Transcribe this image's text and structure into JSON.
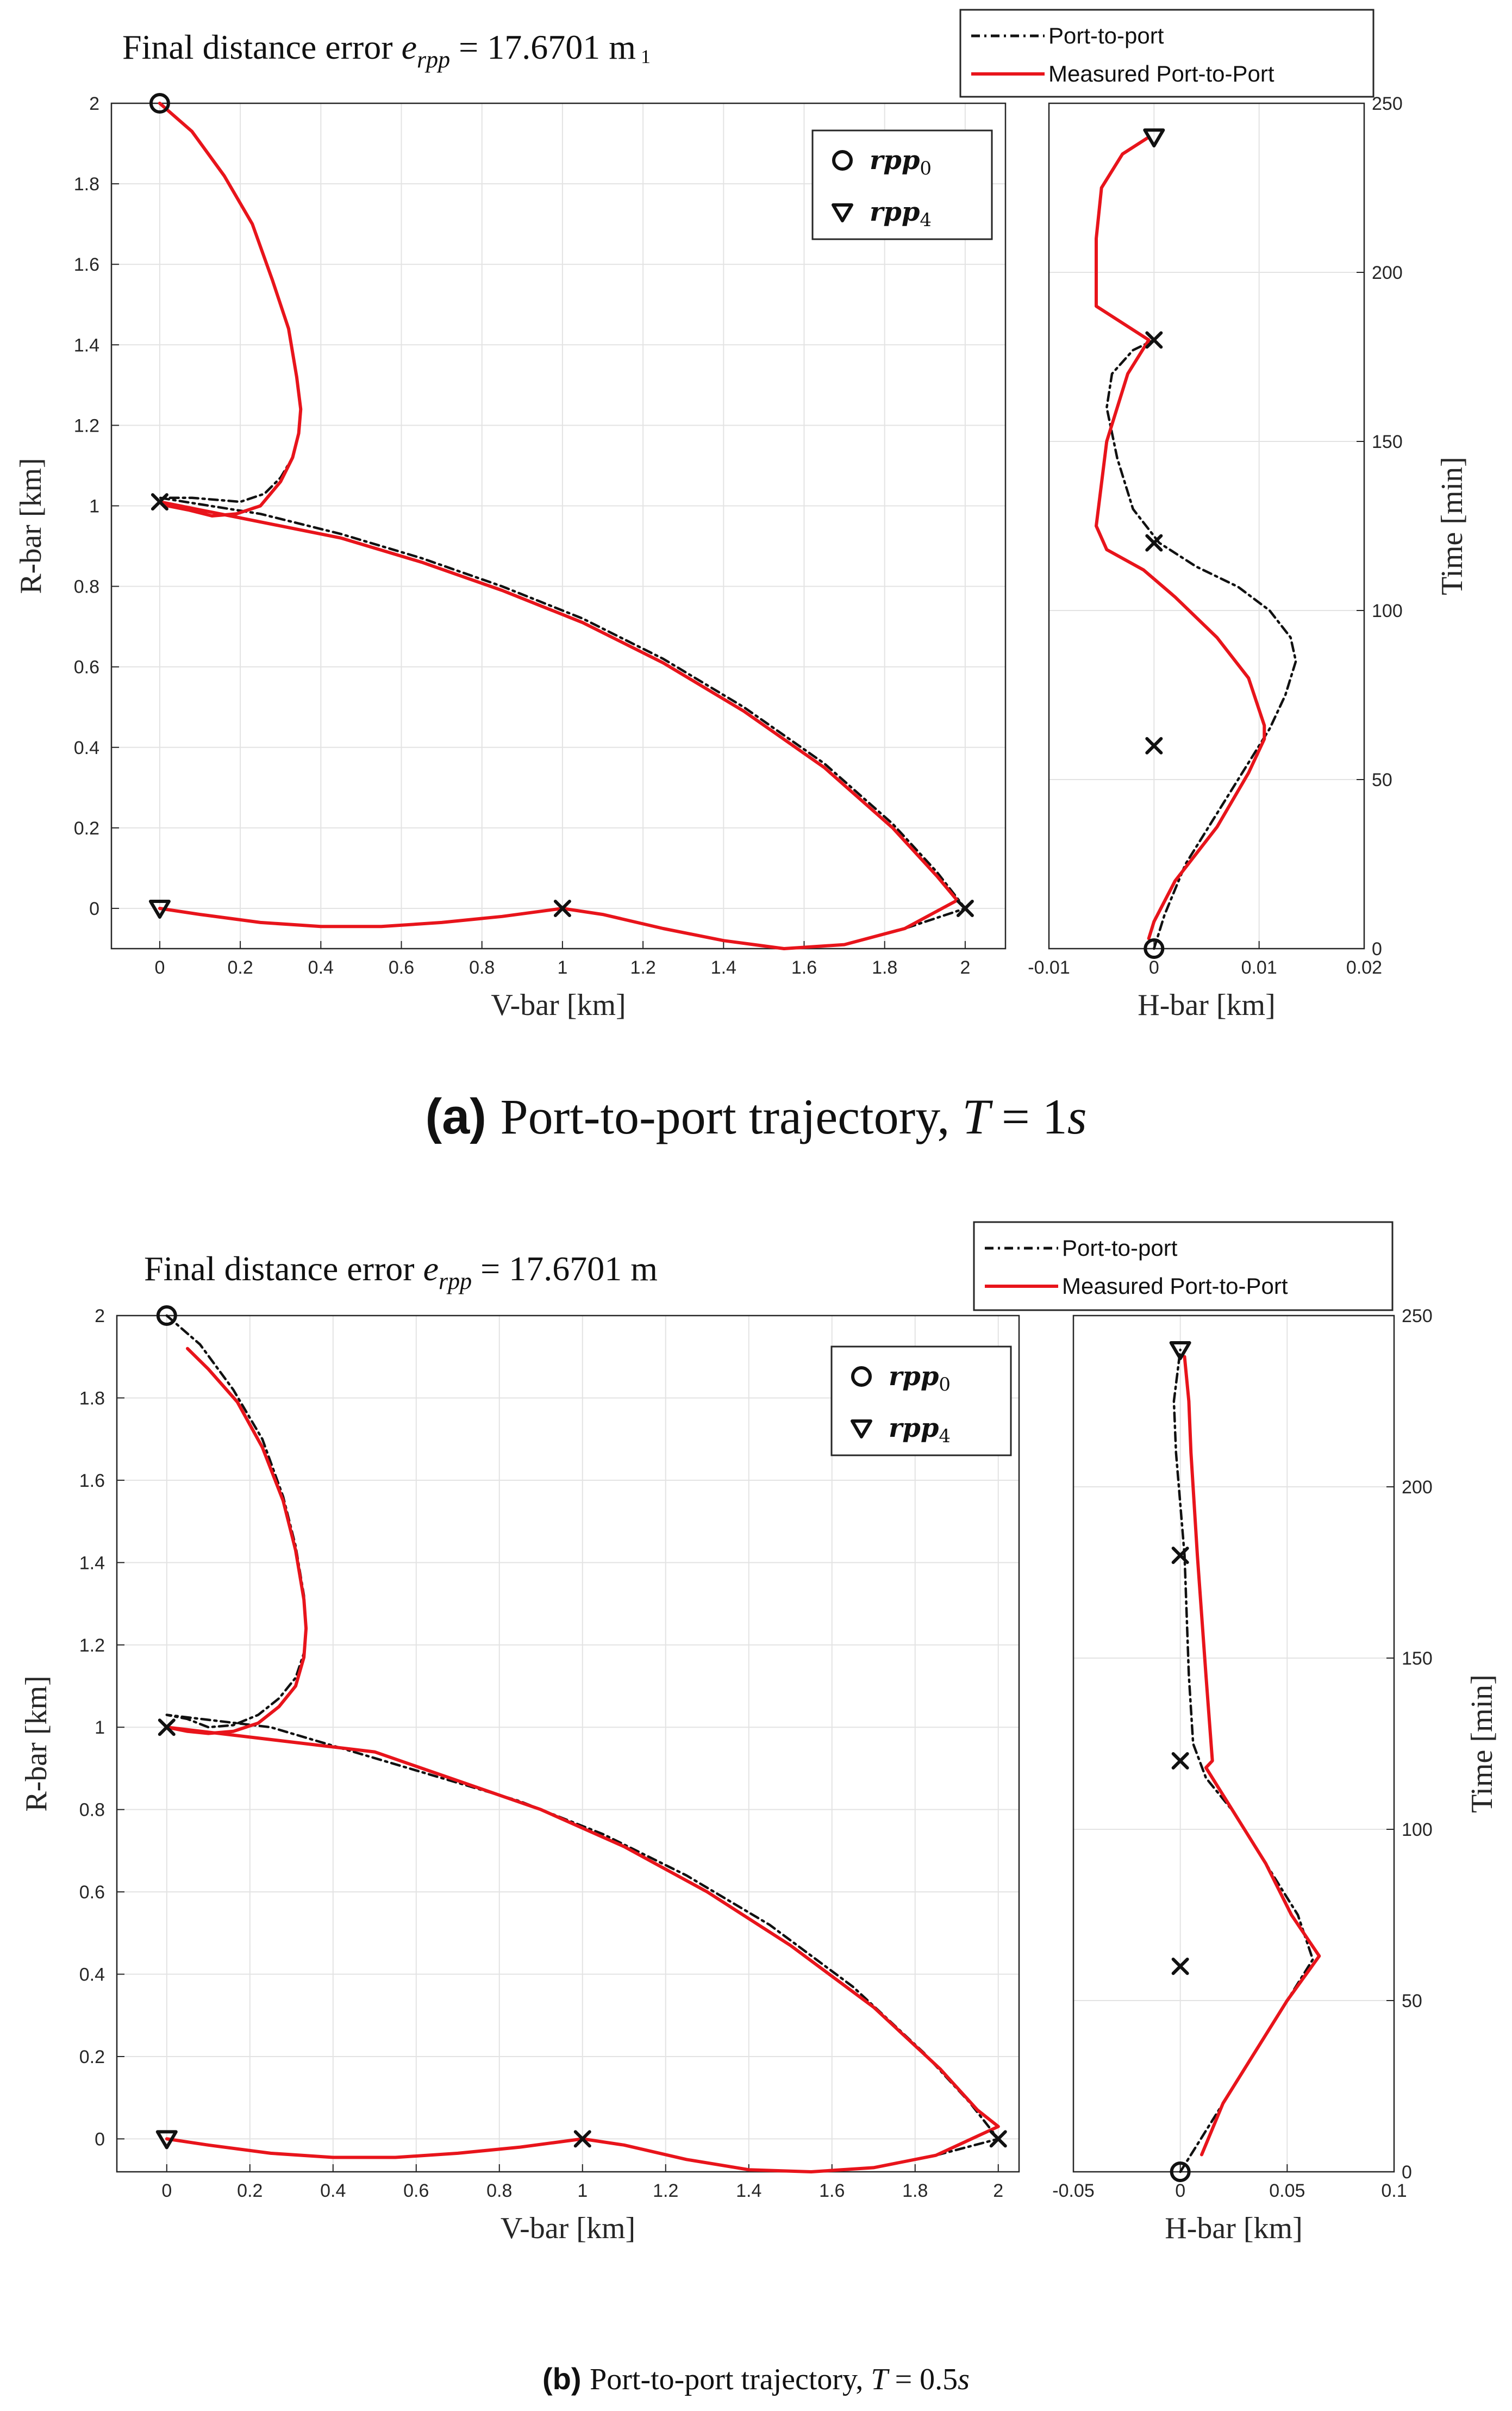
{
  "chart_data": [
    {
      "panel": "a",
      "type": "line",
      "title": "Final distance error e_rpp = 17.6701 m",
      "title_prefix": "Final distance error",
      "title_var": "e",
      "title_var_sub": "rpp",
      "title_value": "= 17.6701 m",
      "title_stray_mark": "1",
      "caption_label": "(a)",
      "caption_text": "Port-to-port trajectory,",
      "caption_var": "T",
      "caption_eq": "= 1",
      "caption_unit": "s",
      "legend": {
        "series": [
          "Port-to-port",
          "Measured Port-to-Port"
        ]
      },
      "marker_legend": {
        "entries": [
          {
            "marker": "circle",
            "label": "rpp",
            "sub": "0"
          },
          {
            "marker": "triangle",
            "label": "rpp",
            "sub": "4"
          }
        ]
      },
      "main": {
        "xlabel": "V-bar [km]",
        "ylabel": "R-bar [km]",
        "xlim": [
          -0.12,
          2.1
        ],
        "ylim": [
          -0.1,
          2.0
        ],
        "xticks": [
          "0",
          "0.2",
          "0.4",
          "0.6",
          "0.8",
          "1",
          "1.2",
          "1.4",
          "1.6",
          "1.8",
          "2"
        ],
        "yticks": [
          "0",
          "0.2",
          "0.4",
          "0.6",
          "0.8",
          "1",
          "1.2",
          "1.4",
          "1.6",
          "1.8",
          "2"
        ],
        "series": [
          {
            "name": "Port-to-port",
            "style": "dashdot",
            "color": "#111111",
            "x": [
              0.0,
              0.08,
              0.16,
              0.23,
              0.28,
              0.32,
              0.34,
              0.35,
              0.345,
              0.33,
              0.3,
              0.26,
              0.2,
              0.14,
              0.08,
              0.02,
              0.0,
              0.25,
              0.45,
              0.65,
              0.85,
              1.05,
              1.25,
              1.45,
              1.65,
              1.82,
              1.93,
              2.0,
              1.85,
              1.7,
              1.55,
              1.4,
              1.25,
              1.1,
              1.0,
              0.85,
              0.7,
              0.55,
              0.4,
              0.25,
              0.1,
              0.0
            ],
            "y": [
              2.0,
              1.93,
              1.82,
              1.7,
              1.56,
              1.44,
              1.32,
              1.24,
              1.18,
              1.12,
              1.07,
              1.03,
              1.01,
              1.015,
              1.02,
              1.02,
              1.02,
              0.98,
              0.93,
              0.87,
              0.8,
              0.72,
              0.62,
              0.5,
              0.36,
              0.21,
              0.09,
              0.0,
              -0.05,
              -0.09,
              -0.1,
              -0.08,
              -0.05,
              -0.015,
              0.0,
              -0.02,
              -0.035,
              -0.045,
              -0.045,
              -0.035,
              -0.015,
              0.0
            ]
          },
          {
            "name": "Measured Port-to-Port",
            "style": "solid",
            "color": "#e8141b",
            "x": [
              0.0,
              0.08,
              0.16,
              0.23,
              0.28,
              0.32,
              0.34,
              0.35,
              0.345,
              0.33,
              0.3,
              0.25,
              0.19,
              0.13,
              0.07,
              0.02,
              0.0,
              0.45,
              0.65,
              0.85,
              1.05,
              1.25,
              1.45,
              1.65,
              1.82,
              1.93,
              1.98,
              1.85,
              1.7,
              1.55,
              1.4,
              1.25,
              1.1,
              1.0,
              0.85,
              0.7,
              0.55,
              0.4,
              0.25,
              0.1,
              0.0
            ],
            "y": [
              2.0,
              1.93,
              1.82,
              1.7,
              1.56,
              1.44,
              1.32,
              1.24,
              1.18,
              1.12,
              1.06,
              1.0,
              0.98,
              0.975,
              0.99,
              1.0,
              1.01,
              0.92,
              0.86,
              0.79,
              0.71,
              0.61,
              0.49,
              0.35,
              0.2,
              0.08,
              0.02,
              -0.05,
              -0.09,
              -0.1,
              -0.08,
              -0.05,
              -0.015,
              0.0,
              -0.02,
              -0.035,
              -0.045,
              -0.045,
              -0.035,
              -0.015,
              0.0
            ]
          }
        ],
        "markers": [
          {
            "type": "circle",
            "x": 0.0,
            "y": 2.0
          },
          {
            "type": "triangle",
            "x": 0.0,
            "y": 0.0
          },
          {
            "type": "x",
            "x": 0.0,
            "y": 1.01
          },
          {
            "type": "x",
            "x": 1.0,
            "y": 0.0
          },
          {
            "type": "x",
            "x": 2.0,
            "y": 0.0
          }
        ]
      },
      "side": {
        "xlabel": "H-bar [km]",
        "ylabel": "Time [min]",
        "xlim": [
          -0.01,
          0.02
        ],
        "ylim": [
          0,
          250
        ],
        "xticks": [
          "-0.01",
          "0",
          "0.01",
          "0.02"
        ],
        "yticks": [
          "0",
          "50",
          "100",
          "150",
          "200",
          "250"
        ],
        "series": [
          {
            "name": "Port-to-port",
            "style": "dashdot",
            "color": "#111111",
            "x": [
              0.0,
              0.001,
              0.003,
              0.006,
              0.009,
              0.011,
              0.0125,
              0.0135,
              0.013,
              0.011,
              0.008,
              0.004,
              0.0005,
              -0.002,
              -0.0035,
              -0.0045,
              -0.004,
              -0.002,
              0.0
            ],
            "y": [
              0,
              10,
              25,
              40,
              55,
              65,
              75,
              85,
              92,
              100,
              107,
              113,
              120,
              130,
              145,
              160,
              170,
              177,
              180
            ]
          },
          {
            "name": "Measured Port-to-Port",
            "style": "solid",
            "color": "#e8141b",
            "x": [
              -0.0005,
              0.0,
              0.002,
              0.006,
              0.009,
              0.0105,
              0.0105,
              0.009,
              0.006,
              0.002,
              -0.001,
              -0.0045,
              -0.0055,
              -0.0045,
              -0.0025,
              -0.0005,
              -0.0055,
              -0.0055,
              -0.005,
              -0.003,
              -0.0005
            ],
            "y": [
              3,
              8,
              20,
              36,
              52,
              62,
              66,
              80,
              92,
              104,
              112,
              118,
              125,
              150,
              170,
              180,
              190,
              210,
              225,
              235,
              240
            ]
          }
        ],
        "markers": [
          {
            "type": "circle",
            "x": 0.0,
            "y": 0
          },
          {
            "type": "triangle",
            "x": 0.0,
            "y": 240
          },
          {
            "type": "x",
            "x": 0.0,
            "y": 60
          },
          {
            "type": "x",
            "x": 0.0,
            "y": 120
          },
          {
            "type": "x",
            "x": 0.0,
            "y": 180
          }
        ]
      }
    },
    {
      "panel": "b",
      "type": "line",
      "title": "Final distance error e_rpp = 17.6701 m",
      "title_prefix": "Final distance error",
      "title_var": "e",
      "title_var_sub": "rpp",
      "title_value": "= 17.6701 m",
      "title_stray_mark": "",
      "caption_label": "(b)",
      "caption_text": "Port-to-port trajectory,",
      "caption_var": "T",
      "caption_eq": "= 0.5",
      "caption_unit": "s",
      "legend": {
        "series": [
          "Port-to-port",
          "Measured Port-to-Port"
        ]
      },
      "marker_legend": {
        "entries": [
          {
            "marker": "circle",
            "label": "rpp",
            "sub": "0"
          },
          {
            "marker": "triangle",
            "label": "rpp",
            "sub": "4"
          }
        ]
      },
      "main": {
        "xlabel": "V-bar [km]",
        "ylabel": "R-bar [km]",
        "xlim": [
          -0.12,
          2.05
        ],
        "ylim": [
          -0.08,
          2.0
        ],
        "xticks": [
          "0",
          "0.2",
          "0.4",
          "0.6",
          "0.8",
          "1",
          "1.2",
          "1.4",
          "1.6",
          "1.8",
          "2"
        ],
        "yticks": [
          "0",
          "0.2",
          "0.4",
          "0.6",
          "0.8",
          "1",
          "1.2",
          "1.4",
          "1.6",
          "1.8",
          "2"
        ],
        "series": [
          {
            "name": "Port-to-port",
            "style": "dashdot",
            "color": "#111111",
            "x": [
              0.0,
              0.08,
              0.16,
              0.23,
              0.28,
              0.31,
              0.33,
              0.335,
              0.33,
              0.31,
              0.27,
              0.22,
              0.16,
              0.1,
              0.05,
              0.0,
              0.25,
              0.45,
              0.65,
              0.85,
              1.05,
              1.25,
              1.45,
              1.65,
              1.82,
              1.93,
              2.0,
              1.85,
              1.7,
              1.55,
              1.4,
              1.25,
              1.1,
              1.0,
              0.85,
              0.7,
              0.55,
              0.4,
              0.25,
              0.1,
              0.0
            ],
            "y": [
              2.0,
              1.93,
              1.82,
              1.7,
              1.56,
              1.44,
              1.32,
              1.24,
              1.18,
              1.12,
              1.07,
              1.03,
              1.005,
              1.0,
              1.02,
              1.03,
              1.0,
              0.94,
              0.88,
              0.82,
              0.74,
              0.64,
              0.52,
              0.37,
              0.21,
              0.09,
              0.0,
              -0.04,
              -0.07,
              -0.08,
              -0.075,
              -0.05,
              -0.015,
              0.0,
              -0.02,
              -0.035,
              -0.045,
              -0.045,
              -0.035,
              -0.015,
              0.0
            ]
          },
          {
            "name": "Measured Port-to-Port",
            "style": "solid",
            "color": "#e8141b",
            "x": [
              0.05,
              0.1,
              0.17,
              0.23,
              0.28,
              0.31,
              0.33,
              0.335,
              0.33,
              0.31,
              0.27,
              0.22,
              0.16,
              0.1,
              0.05,
              0.0,
              0.5,
              0.7,
              0.9,
              1.1,
              1.3,
              1.5,
              1.7,
              1.86,
              1.95,
              2.0,
              1.85,
              1.7,
              1.55,
              1.4,
              1.25,
              1.1,
              1.0,
              0.85,
              0.7,
              0.55,
              0.4,
              0.25,
              0.1,
              0.0
            ],
            "y": [
              1.92,
              1.87,
              1.79,
              1.68,
              1.55,
              1.43,
              1.31,
              1.24,
              1.17,
              1.1,
              1.05,
              1.01,
              0.99,
              0.985,
              0.99,
              1.0,
              0.94,
              0.87,
              0.8,
              0.71,
              0.6,
              0.47,
              0.32,
              0.17,
              0.07,
              0.03,
              -0.04,
              -0.07,
              -0.08,
              -0.075,
              -0.05,
              -0.015,
              0.0,
              -0.02,
              -0.035,
              -0.045,
              -0.045,
              -0.035,
              -0.015,
              0.0
            ]
          }
        ],
        "markers": [
          {
            "type": "circle",
            "x": 0.0,
            "y": 2.0
          },
          {
            "type": "triangle",
            "x": 0.0,
            "y": 0.0
          },
          {
            "type": "x",
            "x": 0.0,
            "y": 1.0
          },
          {
            "type": "x",
            "x": 1.0,
            "y": 0.0
          },
          {
            "type": "x",
            "x": 2.0,
            "y": 0.0
          }
        ]
      },
      "side": {
        "xlabel": "H-bar [km]",
        "ylabel": "Time [min]",
        "xlim": [
          -0.05,
          0.1
        ],
        "ylim": [
          0,
          250
        ],
        "xticks": [
          "-0.05",
          "0",
          "0.05",
          "0.1"
        ],
        "yticks": [
          "0",
          "50",
          "100",
          "150",
          "200",
          "250"
        ],
        "series": [
          {
            "name": "Port-to-port",
            "style": "dashdot",
            "color": "#111111",
            "x": [
              0.0,
              0.015,
              0.03,
              0.045,
              0.062,
              0.055,
              0.04,
              0.025,
              0.012,
              0.006,
              0.004,
              0.002,
              -0.002,
              -0.003,
              0.0
            ],
            "y": [
              0,
              15,
              30,
              45,
              62,
              75,
              90,
              105,
              115,
              125,
              145,
              180,
              210,
              225,
              240
            ]
          },
          {
            "name": "Measured Port-to-Port",
            "style": "solid",
            "color": "#e8141b",
            "x": [
              0.01,
              0.02,
              0.035,
              0.05,
              0.065,
              0.052,
              0.04,
              0.025,
              0.012,
              0.015,
              0.012,
              0.008,
              0.005,
              0.004,
              0.002
            ],
            "y": [
              5,
              20,
              35,
              50,
              63,
              75,
              90,
              105,
              118,
              120,
              145,
              180,
              210,
              225,
              238
            ]
          }
        ],
        "markers": [
          {
            "type": "circle",
            "x": 0.0,
            "y": 0
          },
          {
            "type": "triangle",
            "x": 0.0,
            "y": 240
          },
          {
            "type": "x",
            "x": 0.0,
            "y": 60
          },
          {
            "type": "x",
            "x": 0.0,
            "y": 120
          },
          {
            "type": "x",
            "x": 0.0,
            "y": 180
          }
        ]
      }
    }
  ]
}
